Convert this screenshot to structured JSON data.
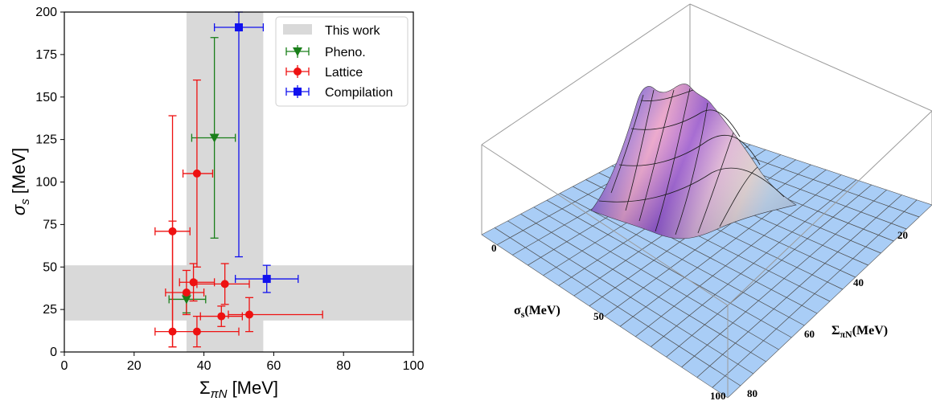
{
  "chart_data": [
    {
      "type": "scatter",
      "xlabel": "Σ",
      "xlabel_sub": "πN",
      "xlabel_unit": " [MeV]",
      "ylabel": "σ",
      "ylabel_sub": "s",
      "ylabel_unit": " [MeV]",
      "xlim": [
        0,
        100
      ],
      "ylim": [
        0,
        200
      ],
      "xticks": [
        0,
        20,
        40,
        60,
        80,
        100
      ],
      "yticks": [
        0,
        25,
        50,
        75,
        100,
        125,
        150,
        175,
        200
      ],
      "grid": false,
      "legend_position": "top-right",
      "bands": {
        "label": "This work",
        "color": "#d9d9d9",
        "vertical_x": [
          35,
          57
        ],
        "horizontal_y": [
          18.5,
          51
        ]
      },
      "series": [
        {
          "name": "Pheno.",
          "color": "#1a7f1a",
          "marker": "triangle-down",
          "points": [
            {
              "x": 43,
              "y": 126,
              "xerr": [
                6.5,
                6
              ],
              "yerr": [
                59,
                59
              ]
            },
            {
              "x": 35,
              "y": 31,
              "xerr": [
                5,
                5.5
              ],
              "yerr": [
                8,
                3
              ]
            }
          ]
        },
        {
          "name": "Lattice",
          "color": "#ee1111",
          "marker": "circle",
          "points": [
            {
              "x": 31,
              "y": 71,
              "xerr": [
                5,
                5
              ],
              "yerr": [
                68,
                68
              ]
            },
            {
              "x": 38,
              "y": 105,
              "xerr": [
                4,
                4.5
              ],
              "yerr": [
                55,
                55
              ]
            },
            {
              "x": 35,
              "y": 35,
              "xerr": [
                6,
                5
              ],
              "yerr": [
                13,
                13
              ]
            },
            {
              "x": 37,
              "y": 41,
              "xerr": [
                4,
                6
              ],
              "yerr": [
                11,
                11
              ]
            },
            {
              "x": 46,
              "y": 40,
              "xerr": [
                8,
                7
              ],
              "yerr": [
                12,
                12
              ]
            },
            {
              "x": 45,
              "y": 21,
              "xerr": [
                6,
                6
              ],
              "yerr": [
                6,
                6
              ]
            },
            {
              "x": 53,
              "y": 22,
              "xerr": [
                6,
                21
              ],
              "yerr": [
                10,
                10
              ]
            },
            {
              "x": 38,
              "y": 12,
              "xerr": [
                12,
                12
              ],
              "yerr": [
                9,
                9
              ]
            },
            {
              "x": 31,
              "y": 12,
              "xerr": [
                0,
                0
              ],
              "yerr": [
                9,
                65
              ]
            }
          ]
        },
        {
          "name": "Compilation",
          "color": "#1111ee",
          "marker": "square",
          "points": [
            {
              "x": 50,
              "y": 191,
              "xerr": [
                7,
                7
              ],
              "yerr": [
                135,
                9
              ]
            },
            {
              "x": 58,
              "y": 43,
              "xerr": [
                9,
                9
              ],
              "yerr": [
                8,
                8
              ]
            }
          ]
        }
      ]
    },
    {
      "type": "surface3d",
      "xlabel": "σ",
      "xlabel_sub": "s",
      "xlabel_unit": "(MeV)",
      "ylabel": "Σ",
      "ylabel_sub": "πN",
      "ylabel_unit": "(MeV)",
      "x_ticks": [
        "0",
        "50",
        "100"
      ],
      "y_ticks": [
        "20",
        "40",
        "60",
        "80"
      ],
      "peak": {
        "sigma_s": 30,
        "sigma_piN": 45
      }
    }
  ]
}
